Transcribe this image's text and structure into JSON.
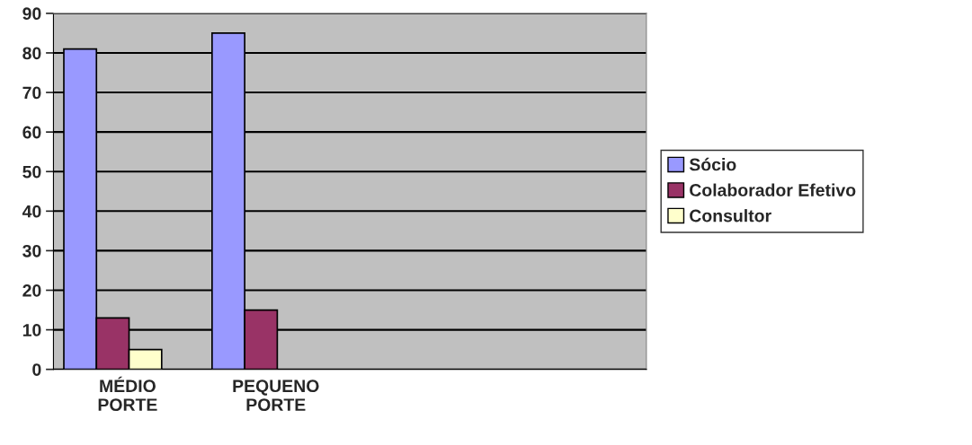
{
  "chart_data": {
    "type": "bar",
    "categories": [
      "MÉDIO PORTE",
      "PEQUENO PORTE",
      null,
      null
    ],
    "series": [
      {
        "name": "Sócio",
        "color": "#9999ff",
        "values": [
          81,
          85,
          null,
          null
        ]
      },
      {
        "name": "Colaborador Efetivo",
        "color": "#993366",
        "values": [
          13,
          15,
          null,
          null
        ]
      },
      {
        "name": "Consultor",
        "color": "#ffffcc",
        "values": [
          5,
          null,
          null,
          null
        ]
      }
    ],
    "ylim": [
      0,
      90
    ],
    "yticks": [
      0,
      10,
      20,
      30,
      40,
      50,
      60,
      70,
      80,
      90
    ],
    "grid": "y",
    "legend": "right"
  }
}
